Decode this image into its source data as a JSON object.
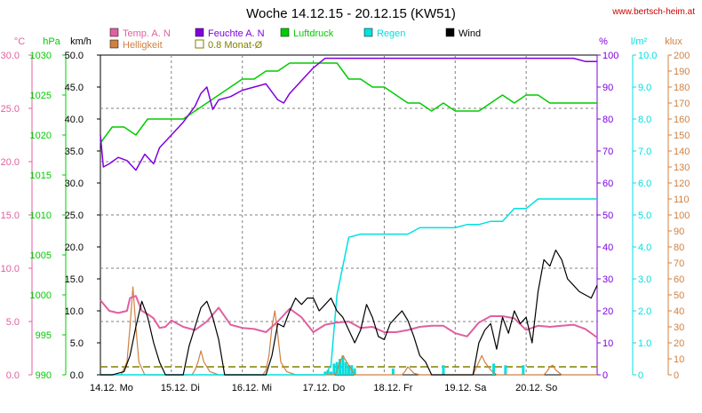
{
  "title": "Woche 14.12.15 - 20.12.15 (KW51)",
  "source": "www.bertsch-heim.at",
  "colors": {
    "temp": "#e060a0",
    "humidity": "#8000e0",
    "pressure": "#00cc00",
    "rain": "#00e0e0",
    "wind": "#000000",
    "brightness": "#d08040",
    "monthly": "#808000",
    "grid": "#808080",
    "red": "#cc0000"
  },
  "chart_data": {
    "type": "line",
    "title": "Woche 14.12.15 - 20.12.15 (KW51)",
    "x_tick_labels": [
      "14.12.  Mo",
      "15.12.  Di",
      "16.12.  Mi",
      "17.12.  Do",
      "18.12.  Fr",
      "19.12.  Sa",
      "20.12.  So"
    ],
    "x_unit": "hours since 14.12. 00:00",
    "xlim": [
      0,
      168
    ],
    "grid": true,
    "legend_position": "top",
    "axes": {
      "temp": {
        "unit": "°C",
        "ylim": [
          0,
          30
        ],
        "ticks": [
          "0.0",
          "5.0",
          "10.0",
          "15.0",
          "20.0",
          "25.0",
          "30.0"
        ]
      },
      "pressure": {
        "unit": "hPa",
        "ylim": [
          990,
          1030
        ],
        "ticks": [
          "990",
          "995",
          "1000",
          "1005",
          "1010",
          "1015",
          "1020",
          "1025",
          "1030"
        ]
      },
      "wind": {
        "unit": "km/h",
        "ylim": [
          0,
          50
        ],
        "ticks": [
          "0.0",
          "5.0",
          "10.0",
          "15.0",
          "20.0",
          "25.0",
          "30.0",
          "35.0",
          "40.0",
          "45.0",
          "50.0"
        ]
      },
      "humidity": {
        "unit": "%",
        "ylim": [
          0,
          100
        ],
        "ticks": [
          "0",
          "10",
          "20",
          "30",
          "40",
          "50",
          "60",
          "70",
          "80",
          "90",
          "100"
        ]
      },
      "rain": {
        "unit": "l/m²",
        "ylim": [
          0,
          10
        ],
        "ticks": [
          "0",
          "1.0",
          "2.0",
          "3.0",
          "4.0",
          "5.0",
          "6.0",
          "7.0",
          "8.0",
          "9.0",
          "10.0"
        ]
      },
      "brightness": {
        "unit": "klux",
        "ylim": [
          0,
          200
        ],
        "ticks": [
          "0",
          "10",
          "20",
          "30",
          "40",
          "50",
          "60",
          "70",
          "80",
          "90",
          "100",
          "110",
          "120",
          "130",
          "140",
          "150",
          "160",
          "170",
          "180",
          "190",
          "200"
        ]
      }
    },
    "series": [
      {
        "name": "Temp. A. N",
        "axis": "temp",
        "x": [
          0,
          3,
          6,
          9,
          10,
          12,
          14,
          16,
          18,
          20,
          22,
          24,
          28,
          32,
          36,
          40,
          44,
          48,
          52,
          56,
          60,
          64,
          68,
          72,
          76,
          80,
          84,
          88,
          92,
          96,
          100,
          104,
          108,
          112,
          116,
          120,
          124,
          128,
          132,
          136,
          140,
          144,
          148,
          152,
          156,
          160,
          164,
          168
        ],
        "y": [
          7.0,
          6.0,
          5.8,
          6.0,
          7.2,
          7.4,
          6.0,
          5.7,
          5.3,
          4.4,
          4.5,
          5.1,
          4.5,
          4.2,
          5.0,
          6.3,
          4.7,
          4.4,
          4.3,
          4.0,
          5.0,
          6.2,
          5.4,
          4.0,
          4.7,
          4.9,
          5.0,
          4.4,
          4.5,
          4.0,
          4.0,
          4.2,
          4.5,
          4.6,
          4.6,
          3.9,
          3.6,
          4.9,
          5.5,
          5.5,
          5.3,
          4.2,
          4.6,
          4.5,
          4.6,
          4.7,
          4.3,
          3.5
        ]
      },
      {
        "name": "Feuchte A. N",
        "axis": "humidity",
        "x": [
          0,
          1,
          3,
          6,
          9,
          12,
          15,
          18,
          20,
          24,
          28,
          32,
          34,
          36,
          38,
          40,
          44,
          48,
          52,
          56,
          60,
          62,
          64,
          68,
          72,
          76,
          80,
          84,
          88,
          92,
          96,
          100,
          104,
          108,
          112,
          116,
          120,
          124,
          128,
          132,
          136,
          140,
          144,
          148,
          152,
          156,
          160,
          164,
          168
        ],
        "y": [
          75,
          65,
          66,
          68,
          67,
          64,
          69,
          66,
          71,
          75,
          79,
          84,
          88,
          90,
          83,
          86,
          87,
          89,
          90,
          91,
          86,
          85,
          88,
          92,
          96,
          99,
          99,
          99,
          99,
          99,
          99,
          99,
          99,
          99,
          99,
          99,
          99,
          99,
          99,
          99,
          99,
          99,
          99,
          99,
          99,
          99,
          99,
          98,
          98
        ]
      },
      {
        "name": "Luftdruck",
        "axis": "pressure",
        "x": [
          0,
          4,
          8,
          12,
          16,
          20,
          24,
          28,
          32,
          36,
          40,
          44,
          48,
          52,
          56,
          60,
          64,
          68,
          72,
          76,
          80,
          84,
          88,
          92,
          96,
          100,
          104,
          108,
          112,
          116,
          120,
          124,
          128,
          132,
          136,
          140,
          144,
          148,
          152,
          156,
          160,
          164,
          168
        ],
        "y": [
          1019,
          1021,
          1021,
          1020,
          1022,
          1022,
          1022,
          1022,
          1023,
          1024,
          1025,
          1026,
          1027,
          1027,
          1028,
          1028,
          1029,
          1029,
          1029,
          1029,
          1029,
          1027,
          1027,
          1026,
          1026,
          1025,
          1024,
          1024,
          1023,
          1024,
          1023,
          1023,
          1023,
          1024,
          1025,
          1024,
          1025,
          1025,
          1024,
          1024,
          1024,
          1024,
          1024
        ]
      },
      {
        "name": "Regen",
        "axis": "rain",
        "x": [
          0,
          68,
          72,
          76,
          78,
          80,
          84,
          88,
          92,
          96,
          100,
          104,
          108,
          112,
          116,
          120,
          124,
          128,
          132,
          136,
          140,
          144,
          148,
          152,
          156,
          160,
          164,
          168
        ],
        "y": [
          0,
          0,
          0,
          0,
          0.3,
          2.5,
          4.3,
          4.4,
          4.4,
          4.4,
          4.4,
          4.4,
          4.6,
          4.6,
          4.6,
          4.6,
          4.7,
          4.7,
          4.8,
          4.8,
          5.2,
          5.2,
          5.5,
          5.5,
          5.5,
          5.5,
          5.5,
          5.5
        ]
      },
      {
        "name": "Wind",
        "axis": "wind",
        "x": [
          0,
          4,
          8,
          10,
          12,
          14,
          16,
          18,
          20,
          22,
          24,
          26,
          28,
          30,
          32,
          34,
          36,
          38,
          40,
          42,
          44,
          46,
          48,
          50,
          52,
          54,
          56,
          58,
          60,
          62,
          64,
          66,
          68,
          70,
          72,
          74,
          76,
          78,
          80,
          82,
          84,
          86,
          88,
          90,
          92,
          94,
          96,
          98,
          100,
          102,
          104,
          106,
          108,
          110,
          112,
          114,
          116,
          118,
          120,
          122,
          124,
          126,
          128,
          130,
          132,
          134,
          136,
          138,
          140,
          142,
          144,
          146,
          148,
          150,
          152,
          154,
          156,
          158,
          160,
          162,
          164,
          166,
          168
        ],
        "y": [
          0,
          0,
          0.5,
          3,
          7.5,
          11.5,
          9,
          5,
          2,
          0,
          0,
          0,
          0,
          4.5,
          7.5,
          10.5,
          11.5,
          9,
          5.5,
          0,
          0,
          0,
          0,
          0,
          0,
          0,
          0,
          3,
          8,
          7.5,
          10,
          12,
          11,
          12,
          12,
          10,
          11,
          12,
          10,
          9,
          7,
          5,
          7,
          11,
          9,
          6,
          5.5,
          8,
          9,
          10,
          8.5,
          6,
          3,
          2,
          0,
          0,
          0,
          0,
          0,
          0,
          0,
          0,
          5,
          7,
          8,
          4,
          9,
          6.5,
          10,
          8,
          9,
          5,
          13,
          18,
          17,
          19.5,
          18,
          15,
          14,
          13,
          12.5,
          12,
          14
        ]
      },
      {
        "name": "Helligkeit",
        "axis": "brightness",
        "x": [
          0,
          4,
          7,
          9,
          10,
          11,
          12,
          13,
          15,
          18,
          20,
          24,
          28,
          31,
          32,
          33,
          34,
          35,
          37,
          40,
          44,
          48,
          52,
          55,
          56,
          57,
          58,
          59,
          60,
          61,
          63,
          66,
          72,
          76,
          79,
          80,
          81,
          82,
          84,
          86,
          90,
          96,
          100,
          102,
          103,
          104,
          105,
          106,
          108,
          110,
          114,
          120,
          124,
          126,
          127,
          128,
          129,
          130,
          132,
          134,
          138,
          144,
          148,
          150,
          151,
          152,
          153,
          154,
          156,
          158,
          162,
          168
        ],
        "y": [
          0,
          0,
          0,
          8,
          30,
          55,
          30,
          8,
          0,
          0,
          0,
          0,
          0,
          0,
          3,
          8,
          15,
          8,
          2,
          0,
          0,
          0,
          0,
          0,
          3,
          12,
          30,
          40,
          25,
          8,
          2,
          0,
          0,
          0,
          0,
          2,
          8,
          12,
          6,
          0,
          0,
          0,
          0,
          0,
          2,
          5,
          3,
          1,
          0,
          0,
          0,
          0,
          0,
          0,
          4,
          8,
          12,
          8,
          3,
          0,
          0,
          0,
          0,
          0,
          2,
          5,
          6,
          3,
          0,
          0,
          0,
          0
        ]
      },
      {
        "name": "0.8 Monat-Ø",
        "axis": "brightness",
        "x": [
          0,
          168
        ],
        "y": [
          5,
          5
        ]
      }
    ],
    "rain_bars": {
      "axis": "rain",
      "x": [
        76,
        77,
        78,
        79,
        80,
        81,
        82,
        83,
        84,
        85,
        86,
        99,
        116,
        133,
        137,
        143
      ],
      "y": [
        0.1,
        0.15,
        0.1,
        0.35,
        0.4,
        0.5,
        0.6,
        0.4,
        0.3,
        0.3,
        0.2,
        0.2,
        0.3,
        0.35,
        0.3,
        0.3
      ]
    }
  },
  "labels": {
    "unit_temp": "°C",
    "unit_pressure": "hPa",
    "unit_wind": "km/h",
    "unit_humidity": "%",
    "unit_rain": "l/m²",
    "unit_brightness": "klux"
  },
  "legend": [
    {
      "name": "Temp. A. N",
      "color": "#e060a0",
      "row": 0,
      "col": 0
    },
    {
      "name": "Feuchte A. N",
      "color": "#8000e0",
      "row": 0,
      "col": 1
    },
    {
      "name": "Luftdruck",
      "color": "#00cc00",
      "row": 0,
      "col": 2
    },
    {
      "name": "Regen",
      "color": "#00e0e0",
      "row": 0,
      "col": 3
    },
    {
      "name": "Wind",
      "color": "#000000",
      "row": 0,
      "col": 4
    },
    {
      "name": "Helligkeit",
      "color": "#d08040",
      "row": 1,
      "col": 0
    },
    {
      "name": "0.8 Monat-Ø",
      "color": "#808000",
      "row": 1,
      "col": 1,
      "hollow": true
    }
  ]
}
